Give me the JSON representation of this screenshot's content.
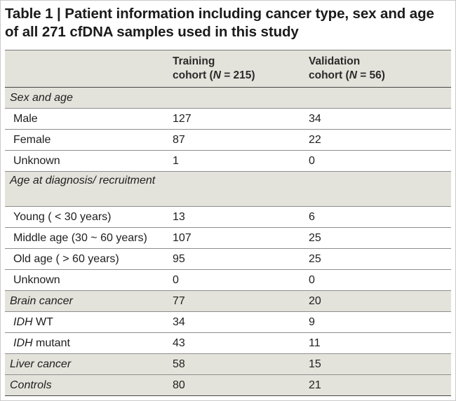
{
  "title": "Table 1 | Patient information including cancer type, sex and age of all 271 cfDNA samples used in this study",
  "header": {
    "col2_line1": "Training",
    "col2_line2_pre": "cohort (",
    "col2_line2_n": "N",
    "col2_line2_post": " = 215)",
    "col3_line1": "Validation",
    "col3_line2_pre": "cohort (",
    "col3_line2_n": "N",
    "col3_line2_post": " = 56)"
  },
  "rows": [
    {
      "label": "Sex and age",
      "training": "",
      "validation": ""
    },
    {
      "label": "Male",
      "training": "127",
      "validation": "34"
    },
    {
      "label": "Female",
      "training": "87",
      "validation": "22"
    },
    {
      "label": "Unknown",
      "training": "1",
      "validation": "0"
    },
    {
      "label": "Age at diagnosis/ recruitment",
      "training": "",
      "validation": ""
    },
    {
      "label": "Young ( < 30 years)",
      "training": "13",
      "validation": "6"
    },
    {
      "label": "Middle age (30 ~ 60 years)",
      "training": "107",
      "validation": "25"
    },
    {
      "label": "Old age ( > 60 years)",
      "training": "95",
      "validation": "25"
    },
    {
      "label": "Unknown",
      "training": "0",
      "validation": "0"
    },
    {
      "label": "Brain cancer",
      "training": "77",
      "validation": "20"
    },
    {
      "label_italic": "IDH",
      "label_rest": " WT",
      "training": "34",
      "validation": "9"
    },
    {
      "label_italic": "IDH",
      "label_rest": " mutant",
      "training": "43",
      "validation": "11"
    },
    {
      "label": "Liver cancer",
      "training": "58",
      "validation": "15"
    },
    {
      "label": "Controls",
      "training": "80",
      "validation": "21"
    }
  ]
}
